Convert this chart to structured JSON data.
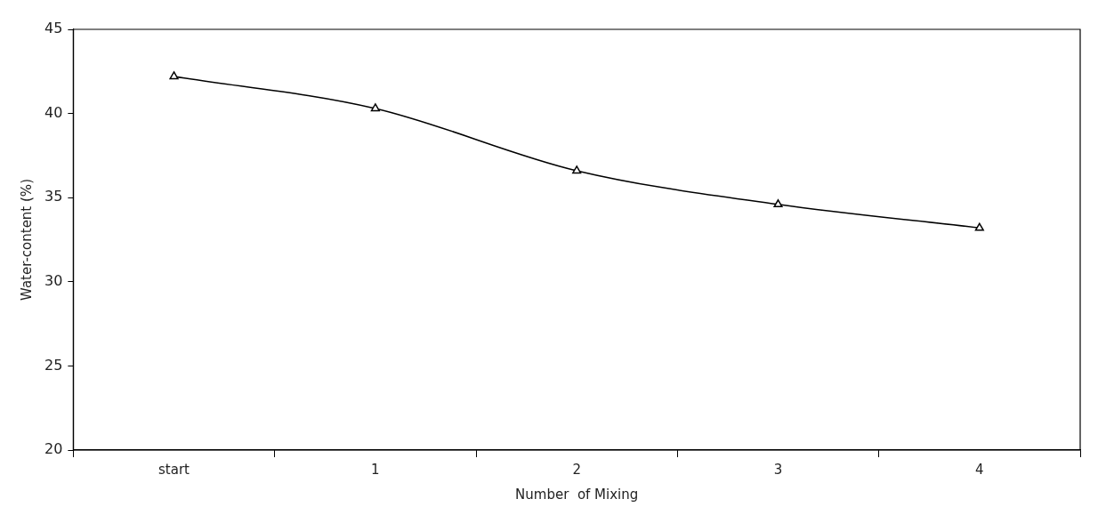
{
  "chart_data": {
    "type": "line",
    "xlabel": "Number  of Mixing",
    "ylabel": "Water-content (%)",
    "categories": [
      "start",
      "1",
      "2",
      "3",
      "4"
    ],
    "series": [
      {
        "color": "#000000",
        "values": [
          42.2,
          40.3,
          36.6,
          34.6,
          33.2
        ]
      }
    ],
    "ylim": [
      20,
      45
    ],
    "yticks": [
      20,
      25,
      30,
      35,
      40,
      45
    ],
    "grid": false,
    "legend": false,
    "marker": "triangle",
    "line_style": "solid"
  }
}
